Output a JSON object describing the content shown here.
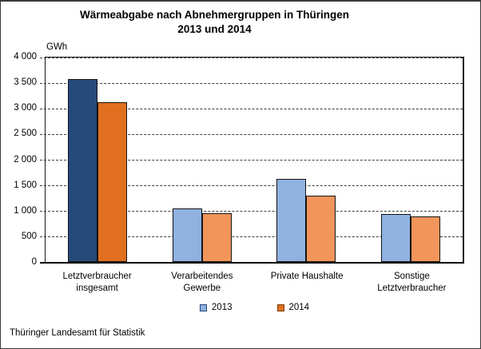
{
  "chart_data": {
    "type": "bar",
    "title": "Wärmeabgabe nach Abnehmergruppen in Thüringen",
    "subtitle": "2013 und 2014",
    "unit_label": "GWh",
    "categories": [
      "Letztverbraucher\ninsgesamt",
      "Verarbeitendes\nGewerbe",
      "Private Haushalte",
      "Sonstige\nLetztverbraucher"
    ],
    "series": [
      {
        "name": "2013",
        "values": [
          3580,
          1040,
          1630,
          940
        ],
        "bar_colors": [
          "#264A7A",
          "#8FB2E0",
          "#8FB2E0",
          "#8FB2E0"
        ],
        "legend_color": "#8FB2E0",
        "legend_border": "#264A7A"
      },
      {
        "name": "2014",
        "values": [
          3120,
          960,
          1290,
          890
        ],
        "bar_colors": [
          "#E0701F",
          "#F2955A",
          "#F2955A",
          "#F2955A"
        ],
        "legend_color": "#E0701F",
        "legend_border": "#7F3F10"
      }
    ],
    "ylim": [
      0,
      4000
    ],
    "ytick_step": 500,
    "ytick_labels": [
      "4 000",
      "3 500",
      "3 000",
      "2 500",
      "2 000",
      "1 500",
      "1 000",
      "500",
      "0"
    ],
    "grid": "horizontal-dashed",
    "legend_position": "bottom"
  },
  "footer": {
    "source": "Thüringer Landesamt für Statistik"
  }
}
